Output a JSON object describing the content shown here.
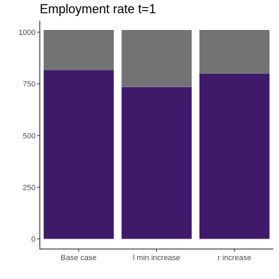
{
  "chart_data": {
    "type": "bar",
    "stacked": true,
    "title": "Employment rate t=1",
    "xlabel": "",
    "ylabel": "",
    "categories": [
      "Base case",
      "l min increase",
      "r increase"
    ],
    "series": [
      {
        "values": [
          817,
          734,
          799
        ],
        "color": "#3f1a6b"
      },
      {
        "values": [
          193,
          276,
          211
        ],
        "color": "#737375"
      }
    ],
    "ylim": [
      0,
      1050
    ],
    "yticks": [
      0,
      250,
      500,
      750,
      1000
    ],
    "ytick_labels": [
      "0",
      "250",
      "500",
      "750",
      "1000"
    ],
    "grid": false,
    "legend": "none"
  }
}
